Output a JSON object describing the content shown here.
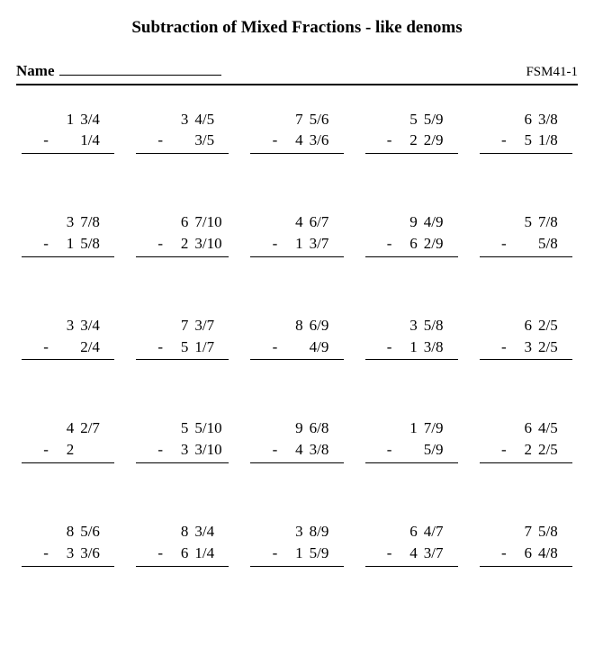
{
  "title": "Subtraction of Mixed Fractions - like denoms",
  "name_label": "Name",
  "worksheet_code": "FSM41-1",
  "layout": {
    "rows": 5,
    "cols": 5
  },
  "style": {
    "font_family": "Times New Roman",
    "title_fontsize": 19,
    "body_fontsize": 17,
    "code_fontsize": 15,
    "background_color": "#ffffff",
    "text_color": "#000000",
    "rule_color": "#000000",
    "header_rule_width": 2.5,
    "problem_rule_width": 1.5,
    "grid_column_gap": 24,
    "grid_row_gap": 64
  },
  "problems": [
    {
      "top_whole": "1",
      "top_frac": "3/4",
      "bot_whole": "",
      "bot_frac": "1/4"
    },
    {
      "top_whole": "3",
      "top_frac": "4/5",
      "bot_whole": "",
      "bot_frac": "3/5"
    },
    {
      "top_whole": "7",
      "top_frac": "5/6",
      "bot_whole": "4",
      "bot_frac": "3/6"
    },
    {
      "top_whole": "5",
      "top_frac": "5/9",
      "bot_whole": "2",
      "bot_frac": "2/9"
    },
    {
      "top_whole": "6",
      "top_frac": "3/8",
      "bot_whole": "5",
      "bot_frac": "1/8"
    },
    {
      "top_whole": "3",
      "top_frac": "7/8",
      "bot_whole": "1",
      "bot_frac": "5/8"
    },
    {
      "top_whole": "6",
      "top_frac": "7/10",
      "bot_whole": "2",
      "bot_frac": "3/10"
    },
    {
      "top_whole": "4",
      "top_frac": "6/7",
      "bot_whole": "1",
      "bot_frac": "3/7"
    },
    {
      "top_whole": "9",
      "top_frac": "4/9",
      "bot_whole": "6",
      "bot_frac": "2/9"
    },
    {
      "top_whole": "5",
      "top_frac": "7/8",
      "bot_whole": "",
      "bot_frac": "5/8"
    },
    {
      "top_whole": "3",
      "top_frac": "3/4",
      "bot_whole": "",
      "bot_frac": "2/4"
    },
    {
      "top_whole": "7",
      "top_frac": "3/7",
      "bot_whole": "5",
      "bot_frac": "1/7"
    },
    {
      "top_whole": "8",
      "top_frac": "6/9",
      "bot_whole": "",
      "bot_frac": "4/9"
    },
    {
      "top_whole": "3",
      "top_frac": "5/8",
      "bot_whole": "1",
      "bot_frac": "3/8"
    },
    {
      "top_whole": "6",
      "top_frac": "2/5",
      "bot_whole": "3",
      "bot_frac": "2/5"
    },
    {
      "top_whole": "4",
      "top_frac": "2/7",
      "bot_whole": "2",
      "bot_frac": ""
    },
    {
      "top_whole": "5",
      "top_frac": "5/10",
      "bot_whole": "3",
      "bot_frac": "3/10"
    },
    {
      "top_whole": "9",
      "top_frac": "6/8",
      "bot_whole": "4",
      "bot_frac": "3/8"
    },
    {
      "top_whole": "1",
      "top_frac": "7/9",
      "bot_whole": "",
      "bot_frac": "5/9"
    },
    {
      "top_whole": "6",
      "top_frac": "4/5",
      "bot_whole": "2",
      "bot_frac": "2/5"
    },
    {
      "top_whole": "8",
      "top_frac": "5/6",
      "bot_whole": "3",
      "bot_frac": "3/6"
    },
    {
      "top_whole": "8",
      "top_frac": "3/4",
      "bot_whole": "6",
      "bot_frac": "1/4"
    },
    {
      "top_whole": "3",
      "top_frac": "8/9",
      "bot_whole": "1",
      "bot_frac": "5/9"
    },
    {
      "top_whole": "6",
      "top_frac": "4/7",
      "bot_whole": "4",
      "bot_frac": "3/7"
    },
    {
      "top_whole": "7",
      "top_frac": "5/8",
      "bot_whole": "6",
      "bot_frac": "4/8"
    }
  ]
}
